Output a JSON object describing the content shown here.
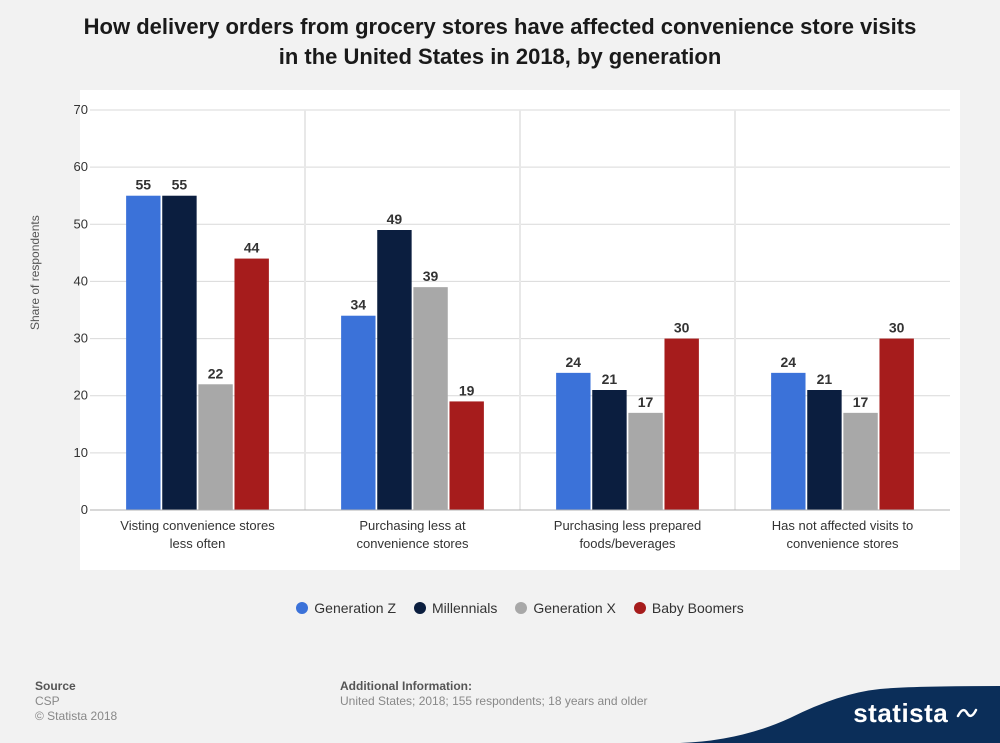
{
  "title_line1": "How delivery orders from grocery stores have affected convenience store visits",
  "title_line2": "in the United States in 2018, by generation",
  "y_axis_label": "Share of respondents",
  "chart": {
    "type": "bar",
    "ylim": [
      0,
      70
    ],
    "ytick_step": 10,
    "background_color": "#ffffff",
    "grid_color": "#d9d9d9",
    "value_label_fontsize": 14,
    "categories": [
      {
        "line1": "Visting convenience stores",
        "line2": "less often",
        "values": [
          55,
          55,
          22,
          44
        ]
      },
      {
        "line1": "Purchasing less at",
        "line2": "convenience stores",
        "values": [
          34,
          49,
          39,
          19
        ]
      },
      {
        "line1": "Purchasing less prepared",
        "line2": "foods/beverages",
        "values": [
          24,
          21,
          17,
          30
        ]
      },
      {
        "line1": "Has not affected visits to",
        "line2": "convenience stores",
        "values": [
          24,
          21,
          17,
          30
        ]
      }
    ],
    "series": [
      {
        "name": "Generation Z",
        "color": "#3b72d9"
      },
      {
        "name": "Millennials",
        "color": "#0b1e3f"
      },
      {
        "name": "Generation X",
        "color": "#a8a8a8"
      },
      {
        "name": "Baby Boomers",
        "color": "#a61c1c"
      }
    ]
  },
  "source_label": "Source",
  "source_value": "CSP",
  "copyright": "© Statista 2018",
  "additional_label": "Additional Information:",
  "additional_value": "United States; 2018; 155 respondents; 18 years and older",
  "logo_text": "statista",
  "logo_bg_color": "#0b2e59"
}
